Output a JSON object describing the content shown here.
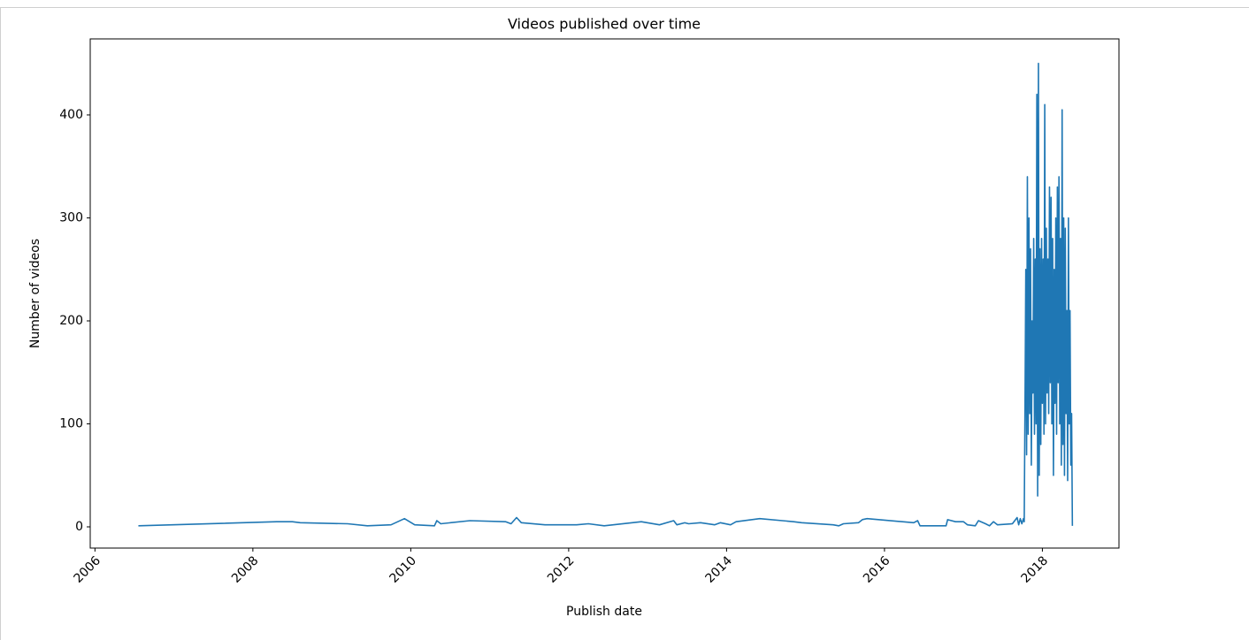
{
  "chart_data": {
    "type": "line",
    "title": "Videos published over time",
    "x_label": "Publish date",
    "y_label": "Number of videos",
    "color": "#1f77b4",
    "x": [
      2006.55,
      2008.3,
      2008.5,
      2008.6,
      2009.2,
      2009.45,
      2009.75,
      2009.92,
      2010.05,
      2010.3,
      2010.33,
      2010.38,
      2010.75,
      2011.2,
      2011.27,
      2011.34,
      2011.4,
      2011.7,
      2012.1,
      2012.25,
      2012.45,
      2012.92,
      2013.15,
      2013.33,
      2013.37,
      2013.47,
      2013.52,
      2013.67,
      2013.85,
      2013.92,
      2014.05,
      2014.12,
      2014.42,
      2014.85,
      2014.95,
      2015.35,
      2015.42,
      2015.48,
      2015.67,
      2015.72,
      2015.78,
      2016.37,
      2016.42,
      2016.45,
      2016.78,
      2016.8,
      2016.9,
      2017.0,
      2017.05,
      2017.15,
      2017.19,
      2017.28,
      2017.33,
      2017.38,
      2017.43,
      2017.62,
      2017.68,
      2017.7,
      2017.72,
      2017.74,
      2017.76,
      2017.77,
      2017.78,
      2017.79,
      2017.8,
      2017.81,
      2017.82,
      2017.83,
      2017.84,
      2017.85,
      2017.86,
      2017.87,
      2017.88,
      2017.89,
      2017.9,
      2017.91,
      2017.92,
      2017.93,
      2017.94,
      2017.95,
      2017.96,
      2017.97,
      2017.98,
      2017.99,
      2018.0,
      2018.01,
      2018.02,
      2018.03,
      2018.04,
      2018.05,
      2018.06,
      2018.07,
      2018.08,
      2018.09,
      2018.1,
      2018.11,
      2018.12,
      2018.13,
      2018.14,
      2018.15,
      2018.16,
      2018.17,
      2018.18,
      2018.19,
      2018.2,
      2018.21,
      2018.22,
      2018.23,
      2018.24,
      2018.25,
      2018.26,
      2018.27,
      2018.28,
      2018.29,
      2018.3,
      2018.31,
      2018.32,
      2018.33,
      2018.34,
      2018.35,
      2018.36,
      2018.37,
      2018.38
    ],
    "values": [
      1,
      5,
      5,
      4,
      3,
      1,
      2,
      8,
      2,
      1,
      6,
      3,
      6,
      5,
      3,
      9,
      4,
      2,
      2,
      3,
      1,
      5,
      2,
      6,
      2,
      4,
      3,
      4,
      2,
      4,
      2,
      5,
      8,
      5,
      4,
      2,
      1,
      3,
      4,
      7,
      8,
      4,
      6,
      1,
      1,
      7,
      5,
      5,
      2,
      1,
      6,
      3,
      1,
      5,
      2,
      3,
      9,
      2,
      8,
      3,
      8,
      5,
      120,
      250,
      70,
      340,
      90,
      300,
      110,
      270,
      60,
      200,
      130,
      280,
      90,
      260,
      100,
      420,
      30,
      450,
      50,
      270,
      80,
      280,
      120,
      260,
      90,
      410,
      100,
      290,
      130,
      260,
      110,
      330,
      140,
      320,
      100,
      280,
      50,
      250,
      120,
      300,
      90,
      330,
      140,
      340,
      100,
      280,
      60,
      405,
      80,
      300,
      50,
      290,
      110,
      210,
      45,
      300,
      100,
      210,
      60,
      110,
      1
    ],
    "xlim": [
      2005.94,
      2018.97
    ],
    "xticks": [
      2006,
      2008,
      2010,
      2012,
      2014,
      2016,
      2018
    ],
    "ylim": [
      -20.6,
      473.8
    ],
    "yticks": [
      0,
      100,
      200,
      300,
      400
    ]
  }
}
